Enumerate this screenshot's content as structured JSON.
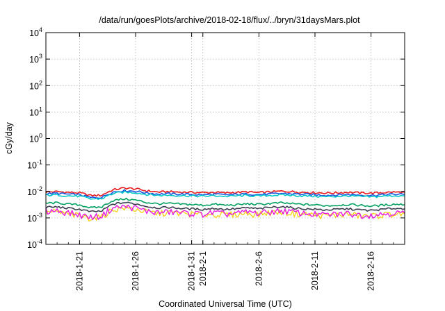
{
  "chart_data": {
    "type": "line",
    "title": "/data/run/goesPlots/archive/2018-02-18/flux/../bryn/31daysMars.plot",
    "xlabel": "Coordinated Universal Time (UTC)",
    "ylabel": "cGy/day",
    "yscale": "log",
    "ylim": [
      0.0001,
      10000
    ],
    "xlim": [
      "2018-01-18",
      "2018-02-19"
    ],
    "grid": true,
    "y_ticks": [
      {
        "base": "10",
        "exp": "-4",
        "value": 0.0001
      },
      {
        "base": "10",
        "exp": "-3",
        "value": 0.001
      },
      {
        "base": "10",
        "exp": "-2",
        "value": 0.01
      },
      {
        "base": "10",
        "exp": "-1",
        "value": 0.1
      },
      {
        "base": "10",
        "exp": "0",
        "value": 1
      },
      {
        "base": "10",
        "exp": "1",
        "value": 10
      },
      {
        "base": "10",
        "exp": "2",
        "value": 100
      },
      {
        "base": "10",
        "exp": "3",
        "value": 1000
      },
      {
        "base": "10",
        "exp": "4",
        "value": 10000
      }
    ],
    "x_ticks": [
      {
        "label": "2018-1-21",
        "date": "2018-01-21"
      },
      {
        "label": "2018-1-26",
        "date": "2018-01-26"
      },
      {
        "label": "2018-1-31",
        "date": "2018-01-31"
      },
      {
        "label": "2018-2-1",
        "date": "2018-02-01"
      },
      {
        "label": "2018-2-6",
        "date": "2018-02-06"
      },
      {
        "label": "2018-2-11",
        "date": "2018-02-11"
      },
      {
        "label": "2018-2-16",
        "date": "2018-02-16"
      }
    ],
    "x": [
      "2018-01-18",
      "2018-01-19",
      "2018-01-20",
      "2018-01-21",
      "2018-01-22",
      "2018-01-23",
      "2018-01-24",
      "2018-01-25",
      "2018-01-26",
      "2018-01-27",
      "2018-01-28",
      "2018-01-29",
      "2018-01-30",
      "2018-01-31",
      "2018-02-01",
      "2018-02-02",
      "2018-02-03",
      "2018-02-04",
      "2018-02-05",
      "2018-02-06",
      "2018-02-07",
      "2018-02-08",
      "2018-02-09",
      "2018-02-10",
      "2018-02-11",
      "2018-02-12",
      "2018-02-13",
      "2018-02-14",
      "2018-02-15",
      "2018-02-16",
      "2018-02-17",
      "2018-02-18",
      "2018-02-19"
    ],
    "series": [
      {
        "color": "#e8191c",
        "values": [
          0.0095,
          0.0098,
          0.0092,
          0.0088,
          0.007,
          0.0072,
          0.0115,
          0.0135,
          0.0125,
          0.0105,
          0.0095,
          0.0098,
          0.0094,
          0.0092,
          0.009,
          0.0092,
          0.0088,
          0.0092,
          0.0095,
          0.009,
          0.0096,
          0.0102,
          0.0098,
          0.0093,
          0.009,
          0.0087,
          0.0089,
          0.0093,
          0.0088,
          0.0086,
          0.009,
          0.0094,
          0.0092
        ]
      },
      {
        "color": "#1a54e0",
        "values": [
          0.0082,
          0.0085,
          0.0078,
          0.0075,
          0.0058,
          0.006,
          0.0095,
          0.0108,
          0.0102,
          0.0088,
          0.008,
          0.0082,
          0.0079,
          0.0077,
          0.0075,
          0.0078,
          0.0074,
          0.0077,
          0.008,
          0.0076,
          0.008,
          0.0084,
          0.0081,
          0.0078,
          0.0075,
          0.0072,
          0.0074,
          0.0077,
          0.0073,
          0.0071,
          0.0075,
          0.0078,
          0.0077
        ]
      },
      {
        "color": "#00c8c8",
        "values": [
          0.0072,
          0.0074,
          0.0068,
          0.0066,
          0.0052,
          0.0053,
          0.0083,
          0.0095,
          0.009,
          0.0077,
          0.0071,
          0.0072,
          0.007,
          0.0068,
          0.0066,
          0.0069,
          0.0065,
          0.0068,
          0.007,
          0.0067,
          0.0071,
          0.0074,
          0.0071,
          0.0068,
          0.0066,
          0.0063,
          0.0065,
          0.0068,
          0.0064,
          0.0062,
          0.0066,
          0.0069,
          0.0068
        ]
      },
      {
        "color": "#00a060",
        "values": [
          0.0036,
          0.0037,
          0.0033,
          0.0031,
          0.0024,
          0.0026,
          0.0045,
          0.0052,
          0.0047,
          0.0038,
          0.0034,
          0.0035,
          0.0033,
          0.0032,
          0.003,
          0.0033,
          0.003,
          0.0031,
          0.0034,
          0.0032,
          0.0035,
          0.0037,
          0.0034,
          0.0032,
          0.0031,
          0.0029,
          0.003,
          0.0032,
          0.003,
          0.0028,
          0.003,
          0.0033,
          0.0032
        ]
      },
      {
        "color": "#3c3c50",
        "values": [
          0.0025,
          0.0026,
          0.0023,
          0.0021,
          0.0017,
          0.0018,
          0.0033,
          0.0038,
          0.0034,
          0.0027,
          0.0024,
          0.0025,
          0.0023,
          0.0022,
          0.0021,
          0.0023,
          0.0021,
          0.0022,
          0.0024,
          0.0022,
          0.0025,
          0.0027,
          0.0024,
          0.0022,
          0.0021,
          0.002,
          0.0021,
          0.0022,
          0.002,
          0.0019,
          0.0021,
          0.0023,
          0.0022
        ]
      },
      {
        "color": "#f5d21c",
        "values": [
          0.0016,
          0.0017,
          0.0014,
          0.0012,
          0.001,
          0.0011,
          0.0021,
          0.0024,
          0.0021,
          0.0017,
          0.0015,
          0.0016,
          0.0015,
          0.0014,
          0.0013,
          0.0014,
          0.0013,
          0.0014,
          0.0015,
          0.0014,
          0.0016,
          0.0017,
          0.0015,
          0.0014,
          0.0013,
          0.0012,
          0.0013,
          0.0014,
          0.0012,
          0.0012,
          0.0013,
          0.0014,
          0.0014
        ]
      },
      {
        "color": "#e619e6",
        "values": [
          0.0018,
          0.0019,
          0.0016,
          0.0013,
          0.0011,
          0.0012,
          0.0024,
          0.0027,
          0.0024,
          0.0018,
          0.0016,
          0.0017,
          0.0016,
          0.0015,
          0.0014,
          0.0016,
          0.0014,
          0.0015,
          0.0017,
          0.0015,
          0.0017,
          0.0019,
          0.0017,
          0.0015,
          0.0014,
          0.0013,
          0.0014,
          0.0015,
          0.0013,
          0.0013,
          0.0014,
          0.0016,
          0.0015
        ]
      }
    ]
  }
}
